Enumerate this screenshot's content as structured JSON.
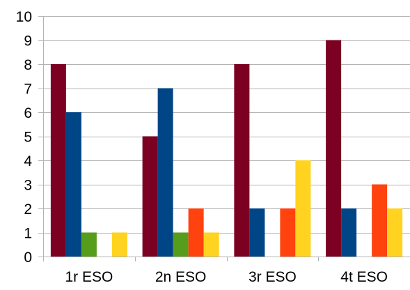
{
  "chart_data": {
    "type": "bar",
    "title": "",
    "xlabel": "",
    "ylabel": "",
    "categories": [
      "1r ESO",
      "2n ESO",
      "3r ESO",
      "4t ESO"
    ],
    "ylim": [
      0,
      10
    ],
    "yticks": [
      0,
      1,
      2,
      3,
      4,
      5,
      6,
      7,
      8,
      9,
      10
    ],
    "grid": true,
    "legend": "none",
    "series": [
      {
        "color": "#7b0022",
        "values": [
          8,
          5,
          8,
          9
        ]
      },
      {
        "color": "#004586",
        "values": [
          6,
          7,
          2,
          2
        ]
      },
      {
        "color": "#579d1c",
        "values": [
          1,
          1,
          0,
          0
        ]
      },
      {
        "color": "#ff420e",
        "values": [
          0,
          2,
          2,
          3
        ]
      },
      {
        "color": "#ffd320",
        "values": [
          1,
          1,
          4,
          2
        ]
      }
    ]
  }
}
